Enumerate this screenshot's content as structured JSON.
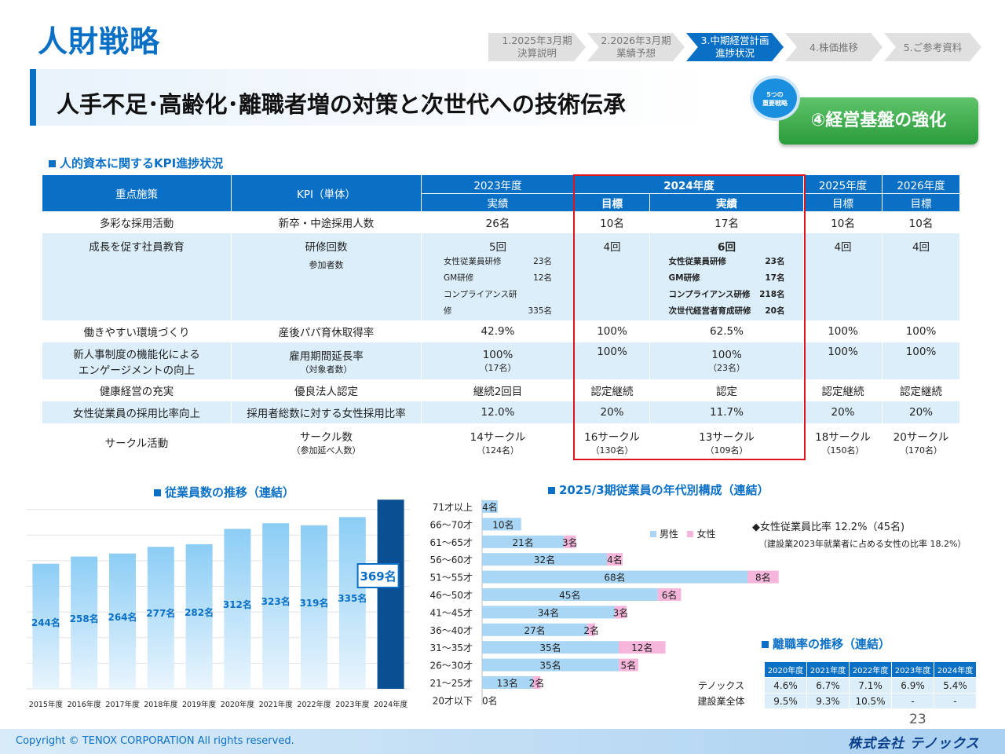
{
  "header": {
    "title": "人財戦略"
  },
  "tabs": [
    {
      "line1": "1.2025年3月期",
      "line2": "決算説明",
      "active": false
    },
    {
      "line1": "2.2026年3月期",
      "line2": "業績予想",
      "active": false
    },
    {
      "line1": "3.中期経営計画",
      "line2": "進捗状況",
      "active": true
    },
    {
      "line1": "4.株価推移",
      "line2": "",
      "active": false
    },
    {
      "line1": "5.ご参考資料",
      "line2": "",
      "active": false
    }
  ],
  "subtitle": "人手不足･高齢化･離職者増の対策と次世代への技術伝承",
  "badge": {
    "line1": "5つの",
    "line2": "重要戦略"
  },
  "strategy": "④経営基盤の強化",
  "kpi_section_title": "人的資本に関するKPI進捗状況",
  "kpi_table": {
    "col_measure": "重点施策",
    "col_kpi": "KPI（単体）",
    "y2023": "2023年度",
    "y2024": "2024年度",
    "y2025": "2025年度",
    "y2026": "2026年度",
    "actual": "実績",
    "target": "目標",
    "rows": [
      {
        "measure": "多彩な採用活動",
        "kpi": "新卒・中途採用人数",
        "a2023": "26名",
        "t2024": "10名",
        "a2024": "17名",
        "t2025": "10名",
        "t2026": "10名"
      },
      {
        "measure": "成長を促す社員教育",
        "kpi": "研修回数",
        "kpi_sub": "参加者数",
        "a2023": "5回",
        "t2024": "4回",
        "a2024": "6回",
        "t2025": "4回",
        "t2026": "4回",
        "d2023": [
          [
            "女性従業員研修",
            "23名"
          ],
          [
            "GM研修",
            "12名"
          ],
          [
            "コンプライアンス研修",
            "335名"
          ]
        ],
        "d2024": [
          [
            "女性従業員研修",
            "23名"
          ],
          [
            "GM研修",
            "17名"
          ],
          [
            "コンプライアンス研修",
            "218名"
          ],
          [
            "次世代経営者育成研修",
            "20名"
          ]
        ]
      },
      {
        "measure": "働きやすい環境づくり",
        "kpi": "産後パパ育休取得率",
        "a2023": "42.9%",
        "t2024": "100%",
        "a2024": "62.5%",
        "t2025": "100%",
        "t2026": "100%"
      },
      {
        "measure": "新人事制度の機能化による",
        "measure2": "エンゲージメントの向上",
        "kpi": "雇用期間延長率",
        "kpi_sub": "（対象者数）",
        "a2023": "100%",
        "a2023_sub": "（17名）",
        "t2024": "100%",
        "a2024": "100%",
        "a2024_sub": "（23名）",
        "t2025": "100%",
        "t2026": "100%"
      },
      {
        "measure": "健康経営の充実",
        "kpi": "優良法人認定",
        "a2023": "継続2回目",
        "t2024": "認定継続",
        "a2024": "認定",
        "t2025": "認定継続",
        "t2026": "認定継続"
      },
      {
        "measure": "女性従業員の採用比率向上",
        "kpi": "採用者総数に対する女性採用比率",
        "a2023": "12.0%",
        "t2024": "20%",
        "a2024": "11.7%",
        "t2025": "20%",
        "t2026": "20%"
      },
      {
        "measure": "サークル活動",
        "kpi": "サークル数",
        "kpi_sub": "（参加延べ人数）",
        "a2023": "14サークル",
        "a2023_sub": "（124名）",
        "t2024": "16サークル",
        "t2024_sub": "（130名）",
        "a2024": "13サークル",
        "a2024_sub": "（109名）",
        "t2025": "18サークル",
        "t2025_sub": "（150名）",
        "t2026": "20サークル",
        "t2026_sub": "（170名）"
      }
    ]
  },
  "emp_title": "従業員数の推移（連結）",
  "age_title": "2025/3期従業員の年代別構成（連結）",
  "ratio_note": "◆女性従業員比率 12.2%（45名)",
  "ratio_sub": "（建設業2023年就業者に占める女性の比率 18.2%）",
  "legend": {
    "male": "男性",
    "female": "女性"
  },
  "turnover_title": "離職率の推移（連結）",
  "turnover": {
    "years": [
      "2020年度",
      "2021年度",
      "2022年度",
      "2023年度",
      "2024年度"
    ],
    "rows": [
      {
        "label": "テノックス",
        "values": [
          "4.6%",
          "6.7%",
          "7.1%",
          "6.9%",
          "5.4%"
        ]
      },
      {
        "label": "建設業全体",
        "values": [
          "9.5%",
          "9.3%",
          "10.5%",
          "-",
          "-"
        ]
      }
    ]
  },
  "page_number": "23",
  "copyright": "Copyright © TENOX CORPORATION All rights reserved.",
  "company": "株式会社 テノックス",
  "colors": {
    "primary": "#0a70c6",
    "highlight": "#e0141e",
    "green": "#2a9c3b",
    "male": "#a9d6f5",
    "female": "#f6b6dc"
  },
  "chart_data": [
    {
      "type": "bar",
      "title": "従業員数の推移（連結）",
      "categories": [
        "2015年度",
        "2016年度",
        "2017年度",
        "2018年度",
        "2019年度",
        "2020年度",
        "2021年度",
        "2022年度",
        "2023年度",
        "2024年度"
      ],
      "values": [
        244,
        258,
        264,
        277,
        282,
        312,
        323,
        319,
        335,
        369
      ],
      "labels": [
        "244名",
        "258名",
        "264名",
        "277名",
        "282名",
        "312名",
        "323名",
        "319名",
        "335名",
        "369名"
      ],
      "highlight_last": true,
      "grid": true
    },
    {
      "type": "bar",
      "orientation": "horizontal-stacked",
      "title": "2025/3期従業員の年代別構成（連結）",
      "categories": [
        "71才以上",
        "66〜70才",
        "61〜65才",
        "56〜60才",
        "51〜55才",
        "46〜50才",
        "41〜45才",
        "36〜40才",
        "31〜35才",
        "26〜30才",
        "21〜25才",
        "20才以下"
      ],
      "series": [
        {
          "name": "男性",
          "values": [
            4,
            10,
            21,
            32,
            68,
            45,
            34,
            27,
            35,
            35,
            13,
            0
          ],
          "labels": [
            "4名",
            "10名",
            "21名",
            "32名",
            "68名",
            "45名",
            "34名",
            "27名",
            "35名",
            "35名",
            "13名",
            "0名"
          ]
        },
        {
          "name": "女性",
          "values": [
            0,
            0,
            3,
            4,
            8,
            6,
            3,
            2,
            12,
            5,
            2,
            0
          ],
          "labels": [
            "",
            "",
            "3名",
            "4名",
            "8名",
            "6名",
            "3名",
            "2名",
            "12名",
            "5名",
            "2名",
            ""
          ]
        }
      ]
    }
  ]
}
